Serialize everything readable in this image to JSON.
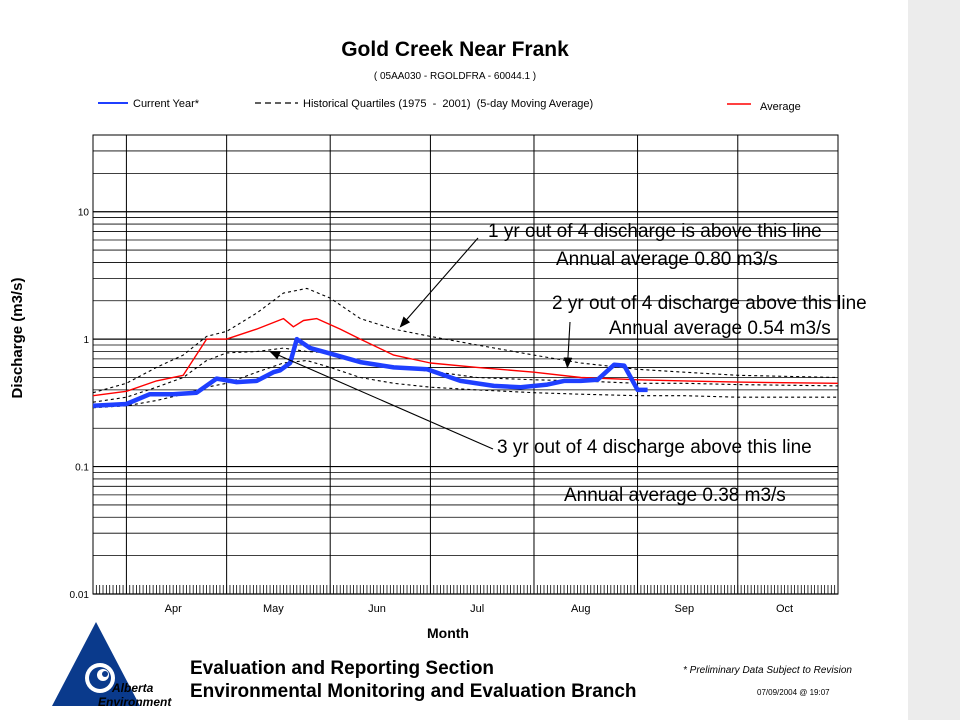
{
  "chart_data": {
    "type": "line",
    "title": "Gold Creek Near Frank",
    "subtitle": "( 05AA030 - RGOLDFRA - 60044.1 )",
    "xlabel": "Month",
    "ylabel": "Discharge (m3/s)",
    "y_scale": "log",
    "ylim": [
      0.01,
      40
    ],
    "yticks": [
      {
        "value": 0.01,
        "label": "0.01"
      },
      {
        "value": 0.1,
        "label": "0.1"
      },
      {
        "value": 1,
        "label": "1"
      },
      {
        "value": 10,
        "label": "10"
      }
    ],
    "xlim": [
      "Mar 22",
      "Oct 31"
    ],
    "months": [
      "Apr",
      "May",
      "Jun",
      "Jul",
      "Aug",
      "Sep",
      "Oct"
    ],
    "grid": true,
    "legend_position": "top",
    "legend": [
      {
        "label": "Current Year*",
        "style": "solid",
        "color": "#1f3fff"
      },
      {
        "label": "Historical Quartiles (1975  -  2001)  (5-day Moving Average)",
        "style": "dashed",
        "color": "#000000"
      },
      {
        "label": "Average",
        "style": "solid",
        "color": "#ff0000"
      }
    ],
    "series": [
      {
        "name": "Current Year*",
        "color": "#1f3fff",
        "x": [
          "Mar 22",
          "Apr 1",
          "Apr 8",
          "Apr 15",
          "Apr 22",
          "Apr 28",
          "May 4",
          "May 10",
          "May 15",
          "May 17",
          "May 20",
          "May 22",
          "May 26",
          "Jun 1",
          "Jun 10",
          "Jun 20",
          "Jun 30",
          "Jul 10",
          "Jul 20",
          "Jul 28",
          "Aug 5",
          "Aug 10",
          "Aug 15",
          "Aug 20",
          "Aug 25",
          "Aug 28",
          "Sep 1",
          "Sep 4"
        ],
        "values": [
          0.3,
          0.31,
          0.37,
          0.37,
          0.38,
          0.49,
          0.46,
          0.47,
          0.55,
          0.57,
          0.65,
          1.0,
          0.85,
          0.77,
          0.66,
          0.6,
          0.58,
          0.47,
          0.43,
          0.42,
          0.44,
          0.47,
          0.47,
          0.48,
          0.63,
          0.62,
          0.4,
          0.4
        ]
      },
      {
        "name": "Average",
        "color": "#ff0000",
        "x": [
          "Mar 22",
          "Apr 1",
          "Apr 10",
          "Apr 18",
          "Apr 25",
          "May 1",
          "May 10",
          "May 18",
          "May 21",
          "May 24",
          "May 28",
          "Jun 4",
          "Jun 10",
          "Jun 20",
          "Jul 1",
          "Jul 15",
          "Aug 1",
          "Aug 15",
          "Sep 1",
          "Sep 15",
          "Oct 1",
          "Oct 31"
        ],
        "values": [
          0.36,
          0.39,
          0.47,
          0.52,
          1.0,
          1.0,
          1.2,
          1.45,
          1.25,
          1.4,
          1.45,
          1.2,
          1.0,
          0.75,
          0.65,
          0.6,
          0.55,
          0.5,
          0.48,
          0.47,
          0.46,
          0.45
        ]
      },
      {
        "name": "Upper quartile",
        "color": "#000000",
        "x": [
          "Mar 22",
          "Apr 1",
          "Apr 10",
          "Apr 18",
          "Apr 25",
          "May 1",
          "May 10",
          "May 18",
          "May 25",
          "Jun 1",
          "Jun 10",
          "Jun 20",
          "Jul 1",
          "Jul 15",
          "Aug 1",
          "Aug 15",
          "Sep 1",
          "Sep 15",
          "Oct 1",
          "Oct 31"
        ],
        "values": [
          0.38,
          0.45,
          0.6,
          0.75,
          1.05,
          1.15,
          1.6,
          2.3,
          2.5,
          2.1,
          1.45,
          1.2,
          1.05,
          0.9,
          0.75,
          0.65,
          0.58,
          0.55,
          0.52,
          0.5
        ]
      },
      {
        "name": "Median",
        "color": "#000000",
        "x": [
          "Mar 22",
          "Apr 1",
          "Apr 10",
          "Apr 18",
          "Apr 25",
          "May 1",
          "May 10",
          "May 18",
          "May 25",
          "Jun 1",
          "Jun 10",
          "Jun 20",
          "Jul 1",
          "Jul 15",
          "Aug 1",
          "Aug 15",
          "Sep 1",
          "Sep 15",
          "Oct 1",
          "Oct 31"
        ],
        "values": [
          0.32,
          0.35,
          0.42,
          0.5,
          0.68,
          0.78,
          0.8,
          0.85,
          0.8,
          0.78,
          0.68,
          0.6,
          0.56,
          0.5,
          0.48,
          0.47,
          0.45,
          0.45,
          0.44,
          0.43
        ]
      },
      {
        "name": "Lower quartile",
        "color": "#000000",
        "x": [
          "Mar 22",
          "Apr 1",
          "Apr 10",
          "Apr 18",
          "Apr 25",
          "May 1",
          "May 10",
          "May 18",
          "May 25",
          "Jun 1",
          "Jun 10",
          "Jun 20",
          "Jul 1",
          "Jul 15",
          "Aug 1",
          "Aug 15",
          "Sep 1",
          "Sep 15",
          "Oct 1",
          "Oct 31"
        ],
        "values": [
          0.29,
          0.3,
          0.33,
          0.37,
          0.42,
          0.45,
          0.55,
          0.65,
          0.68,
          0.6,
          0.5,
          0.45,
          0.42,
          0.4,
          0.38,
          0.37,
          0.36,
          0.36,
          0.35,
          0.35
        ]
      }
    ],
    "annotations": [
      {
        "text": "1 yr out of 4 discharge  is above this line",
        "target_x": "Jun 22",
        "target_y": 1.25
      },
      {
        "text": "Annual  average 0.80 m3/s"
      },
      {
        "text": "2 yr out of 4 discharge  above this line",
        "target_x": "Aug 11",
        "target_y": 0.6
      },
      {
        "text": "Annual  average 0.54 m3/s"
      },
      {
        "text": "3 yr out of 4 discharge  above this line",
        "target_x": "May 14",
        "target_y": 0.8
      },
      {
        "text": "Annual  average 0.38 m3/s"
      }
    ]
  },
  "footer": {
    "line1": "Evaluation and Reporting Section",
    "line2": "Environmental Monitoring and Evaluation Branch",
    "preliminary": "* Preliminary Data Subject to Revision",
    "timestamp": "07/09/2004 @ 19:07"
  },
  "logo": {
    "icon": "alberta-environment-logo",
    "text1": "Alberta",
    "text2": "Environment"
  },
  "colors": {
    "current": "#1f3fff",
    "average": "#ff0000",
    "quartile": "#000000",
    "grid": "#000000"
  }
}
